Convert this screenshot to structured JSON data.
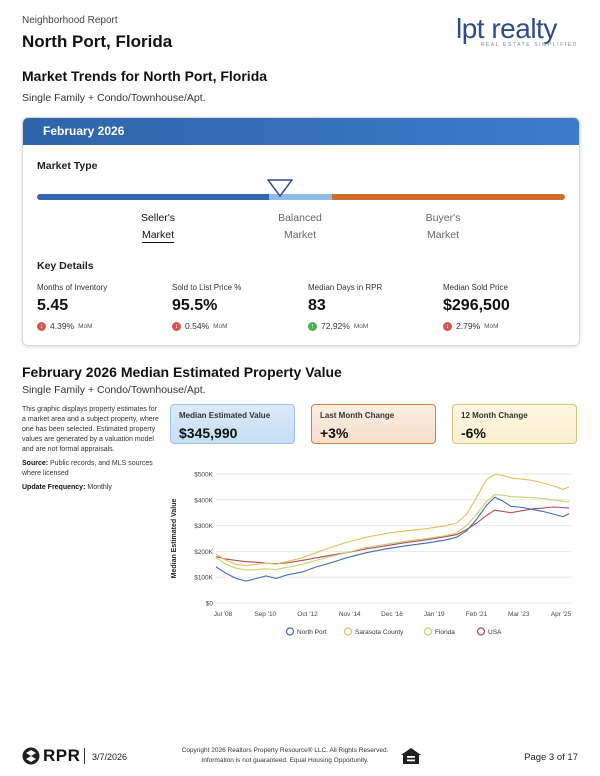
{
  "header": {
    "report_label": "Neighborhood Report",
    "city": "North Port, Florida",
    "logo_main": "lpt realty",
    "logo_sub": "REAL ESTATE SIMPLIFIED"
  },
  "market_trends": {
    "title": "Market Trends for North Port, Florida",
    "subtitle": "Single Family + Condo/Townhouse/Apt.",
    "month": "February 2026",
    "market_type_title": "Market Type",
    "market_type_level": 0.46,
    "labels": {
      "seller": [
        "Seller's",
        "Market"
      ],
      "balanced": [
        "Balanced",
        "Market"
      ],
      "buyer": [
        "Buyer's",
        "Market"
      ]
    },
    "active_label": "seller",
    "colors": {
      "seller": "#3466b0",
      "balanced": "#8fbbe6",
      "buyer": "#cf6f2e"
    },
    "key_details_title": "Key Details",
    "key_details": [
      {
        "label": "Months of Inventory",
        "value": "5.45",
        "change": "4.39%",
        "unit": "MoM",
        "direction": "down"
      },
      {
        "label": "Sold to List Price %",
        "value": "95.5%",
        "change": "0.54%",
        "unit": "MoM",
        "direction": "down"
      },
      {
        "label": "Median Days in RPR",
        "value": "83",
        "change": "72.92%",
        "unit": "MoM",
        "direction": "up"
      },
      {
        "label": "Median Sold Price",
        "value": "$296,500",
        "change": "2.79%",
        "unit": "MoM",
        "direction": "down"
      }
    ]
  },
  "property_value": {
    "title": "February 2026 Median Estimated Property Value",
    "subtitle": "Single Family + Condo/Townhouse/Apt.",
    "description": "This graphic displays property estimates for a market area and a subject property, where one has been selected. Estimated property values are generated by a valuation model and are not formal appraisals.",
    "source_label": "Source:",
    "source_text": "Public records, and MLS sources where licensed",
    "frequency_label": "Update Frequency:",
    "frequency_text": "Monthly",
    "stats": [
      {
        "label": "Median Estimated Value",
        "value": "$345,990"
      },
      {
        "label": "Last Month Change",
        "value": "+3%"
      },
      {
        "label": "12 Month Change",
        "value": "-6%"
      }
    ]
  },
  "chart_data": {
    "type": "line",
    "ylabel": "Median Estimated Value",
    "xlabel": "",
    "ylim": [
      0,
      500000
    ],
    "y_ticks": [
      "$0",
      "$100K",
      "$200K",
      "$300K",
      "$400K",
      "$500K"
    ],
    "x_ticks": [
      "Jul '08",
      "Sep '10",
      "Oct '12",
      "Nov '14",
      "Dec '16",
      "Jan '19",
      "Feb '21",
      "Mar '23",
      "Apr '25"
    ],
    "xlim": [
      2008.5,
      2026.2
    ],
    "grid": true,
    "legend_position": "bottom",
    "series": [
      {
        "name": "North Port",
        "color": "#3f6bb3",
        "x": [
          2008.5,
          2009.0,
          2009.5,
          2010.0,
          2010.5,
          2011.0,
          2011.5,
          2012.0,
          2012.8,
          2013.5,
          2014.2,
          2015.0,
          2016.0,
          2017.0,
          2018.0,
          2019.0,
          2020.0,
          2020.5,
          2021.0,
          2021.5,
          2022.0,
          2022.4,
          2022.8,
          2023.2,
          2023.8,
          2024.3,
          2024.8,
          2025.3,
          2025.8,
          2026.1
        ],
        "y": [
          140000,
          115000,
          95000,
          85000,
          95000,
          105000,
          95000,
          108000,
          120000,
          140000,
          155000,
          175000,
          195000,
          210000,
          222000,
          232000,
          245000,
          255000,
          280000,
          325000,
          380000,
          410000,
          395000,
          375000,
          370000,
          362000,
          355000,
          345000,
          335000,
          346000
        ]
      },
      {
        "name": "Sarasota County",
        "color": "#e0c15a",
        "x": [
          2008.5,
          2009.0,
          2009.5,
          2010.0,
          2010.5,
          2011.0,
          2011.5,
          2012.0,
          2012.8,
          2013.5,
          2014.2,
          2015.0,
          2016.0,
          2017.0,
          2018.0,
          2019.0,
          2020.0,
          2020.5,
          2021.0,
          2021.5,
          2022.0,
          2022.4,
          2022.8,
          2023.2,
          2023.8,
          2024.3,
          2024.8,
          2025.3,
          2025.8,
          2026.1
        ],
        "y": [
          190000,
          165000,
          150000,
          145000,
          150000,
          155000,
          150000,
          160000,
          175000,
          195000,
          215000,
          235000,
          255000,
          270000,
          280000,
          288000,
          300000,
          310000,
          345000,
          410000,
          480000,
          498000,
          495000,
          485000,
          480000,
          475000,
          465000,
          455000,
          440000,
          450000
        ]
      },
      {
        "name": "Florida",
        "color": "#c9d06a",
        "x": [
          2008.5,
          2009.0,
          2009.5,
          2010.0,
          2010.5,
          2011.0,
          2011.5,
          2012.0,
          2012.8,
          2013.5,
          2014.2,
          2015.0,
          2016.0,
          2017.0,
          2018.0,
          2019.0,
          2020.0,
          2020.5,
          2021.0,
          2021.5,
          2022.0,
          2022.4,
          2022.8,
          2023.2,
          2023.8,
          2024.3,
          2024.8,
          2025.3,
          2025.8,
          2026.1
        ],
        "y": [
          175000,
          150000,
          135000,
          128000,
          130000,
          132000,
          130000,
          138000,
          150000,
          165000,
          180000,
          195000,
          215000,
          228000,
          240000,
          250000,
          262000,
          272000,
          300000,
          345000,
          395000,
          420000,
          418000,
          412000,
          410000,
          408000,
          405000,
          400000,
          395000,
          392000
        ]
      },
      {
        "name": "USA",
        "color": "#b5495b",
        "x": [
          2008.5,
          2009.0,
          2009.5,
          2010.0,
          2010.5,
          2011.0,
          2011.5,
          2012.0,
          2012.8,
          2013.5,
          2014.2,
          2015.0,
          2016.0,
          2017.0,
          2018.0,
          2019.0,
          2020.0,
          2020.5,
          2021.0,
          2021.5,
          2022.0,
          2022.4,
          2022.8,
          2023.2,
          2023.8,
          2024.3,
          2024.8,
          2025.3,
          2025.8,
          2026.1
        ],
        "y": [
          180000,
          170000,
          165000,
          160000,
          158000,
          155000,
          152000,
          155000,
          165000,
          175000,
          185000,
          195000,
          210000,
          222000,
          235000,
          245000,
          258000,
          265000,
          285000,
          310000,
          340000,
          360000,
          355000,
          350000,
          358000,
          365000,
          368000,
          372000,
          370000,
          368000
        ]
      }
    ]
  },
  "footer": {
    "rpr_text": "RPR",
    "date": "3/7/2026",
    "copyright_line1": "Copyright 2026 Realtors Property Resource® LLC. All Rights Reserved.",
    "copyright_line2": "Information is not guaranteed. Equal Housing Opportunity.",
    "page": "Page 3 of 17"
  }
}
